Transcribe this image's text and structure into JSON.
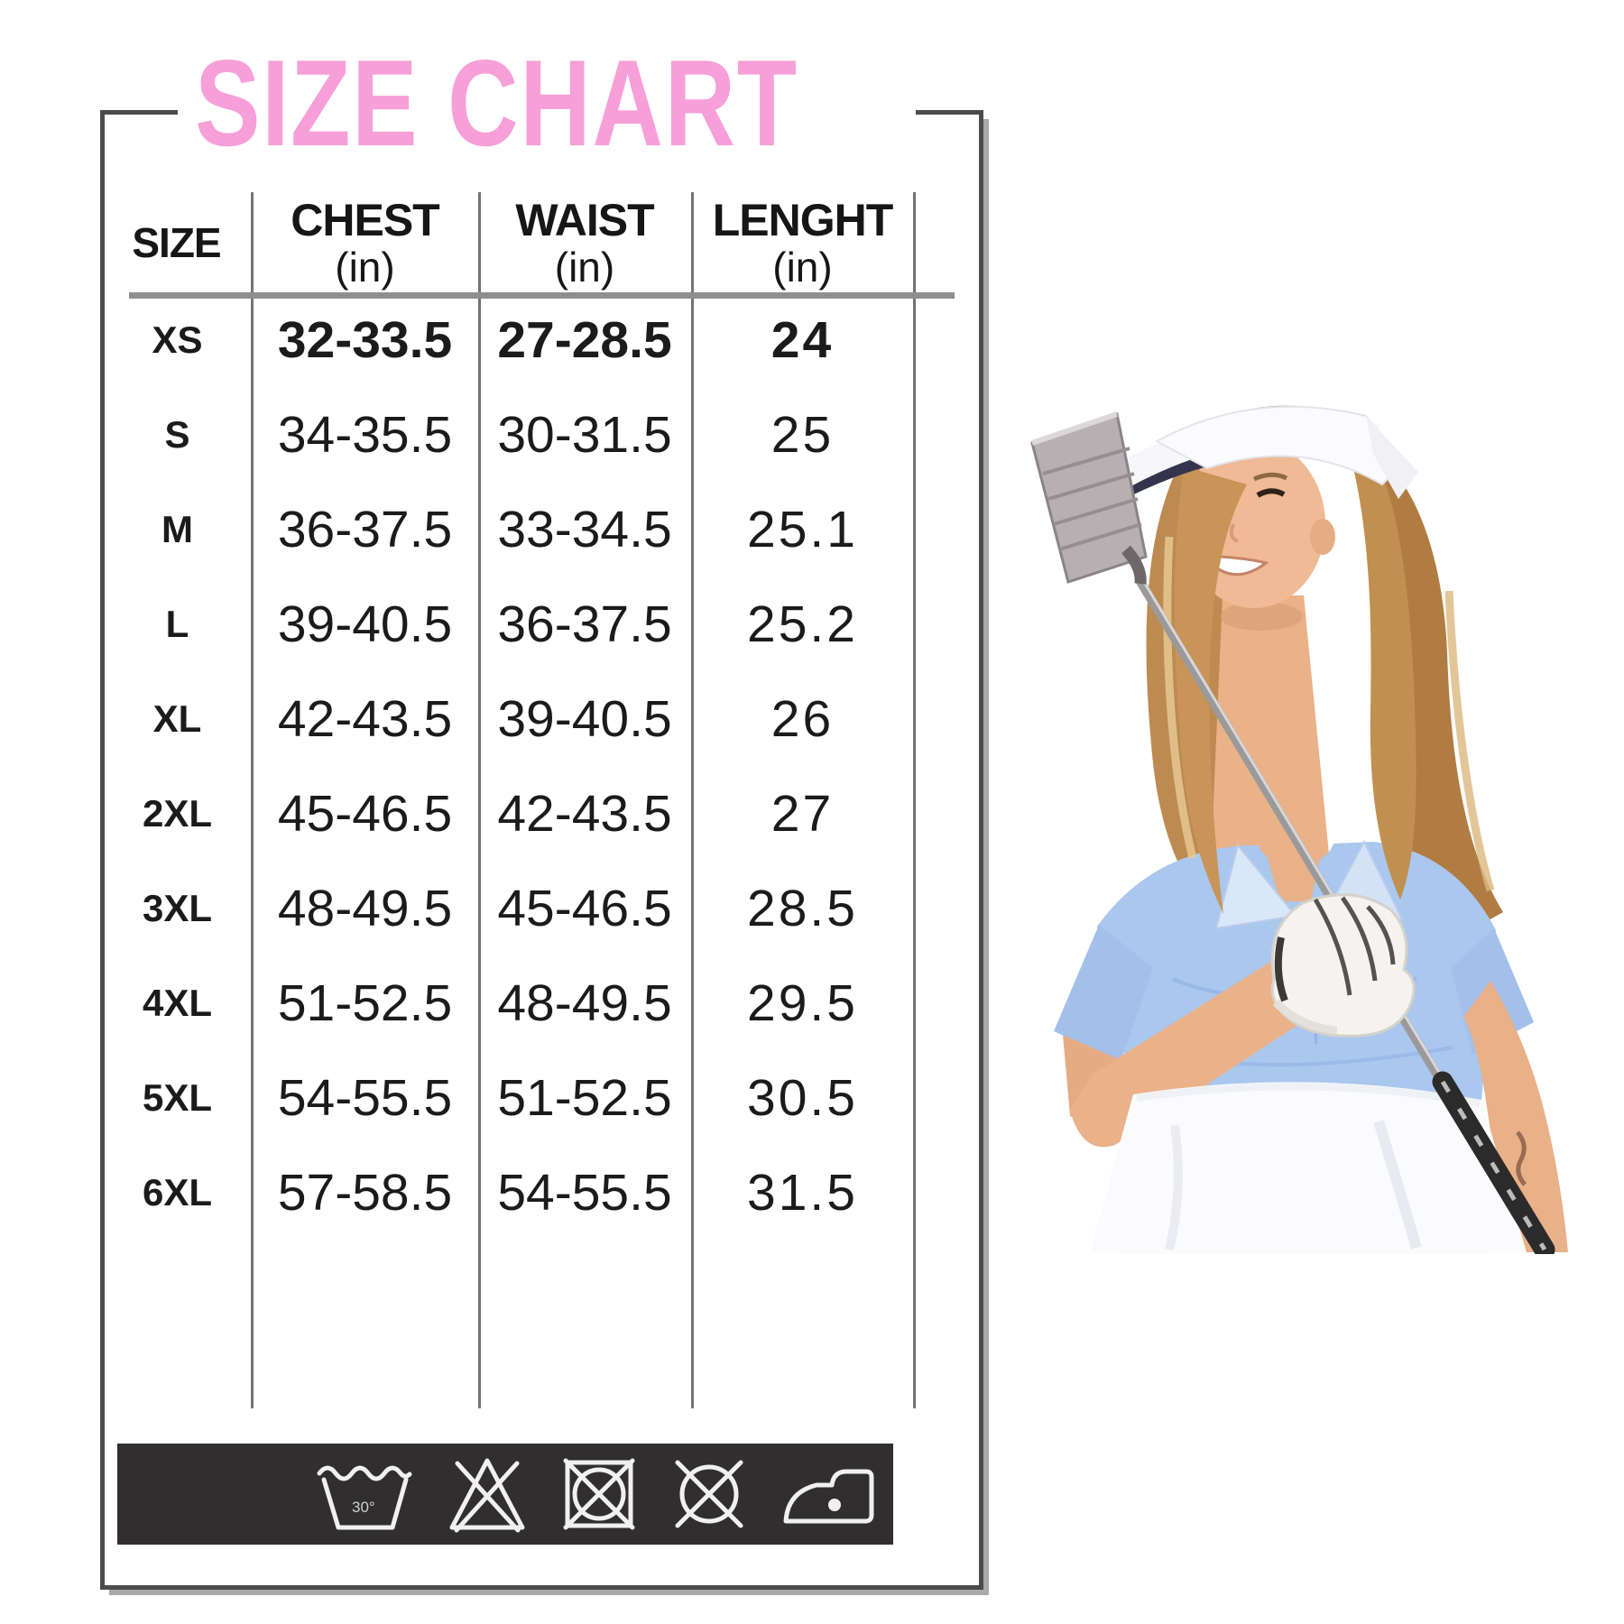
{
  "title": "SIZE CHART",
  "table": {
    "columns": [
      "SIZE",
      "CHEST",
      "WAIST",
      "LENGHT"
    ],
    "unit_label": "(in)",
    "rows": [
      {
        "size": "XS",
        "chest": "32-33.5",
        "waist": "27-28.5",
        "length": "24",
        "bold": true
      },
      {
        "size": "S",
        "chest": "34-35.5",
        "waist": "30-31.5",
        "length": "25",
        "bold": false
      },
      {
        "size": "M",
        "chest": "36-37.5",
        "waist": "33-34.5",
        "length": "25.1",
        "bold": false
      },
      {
        "size": "L",
        "chest": "39-40.5",
        "waist": "36-37.5",
        "length": "25.2",
        "bold": false
      },
      {
        "size": "XL",
        "chest": "42-43.5",
        "waist": "39-40.5",
        "length": "26",
        "bold": false
      },
      {
        "size": "2XL",
        "chest": "45-46.5",
        "waist": "42-43.5",
        "length": "27",
        "bold": false
      },
      {
        "size": "3XL",
        "chest": "48-49.5",
        "waist": "45-46.5",
        "length": "28.5",
        "bold": false
      },
      {
        "size": "4XL",
        "chest": "51-52.5",
        "waist": "48-49.5",
        "length": "29.5",
        "bold": false
      },
      {
        "size": "5XL",
        "chest": "54-55.5",
        "waist": "51-52.5",
        "length": "30.5",
        "bold": false
      },
      {
        "size": "6XL",
        "chest": "57-58.5",
        "waist": "54-55.5",
        "length": "31.5",
        "bold": false
      }
    ]
  },
  "care_bar": {
    "wash_temp": "30°",
    "icons": [
      "machine-wash-30-icon",
      "do-not-bleach-icon",
      "do-not-tumble-dry-icon",
      "do-not-dry-clean-icon",
      "iron-low-heat-icon"
    ]
  },
  "colors": {
    "title_pink": "#f79fd9",
    "frame_gray": "#4b4b4b",
    "care_bar_bg": "#302e2f",
    "polo_blue": "#aac7ee"
  }
}
